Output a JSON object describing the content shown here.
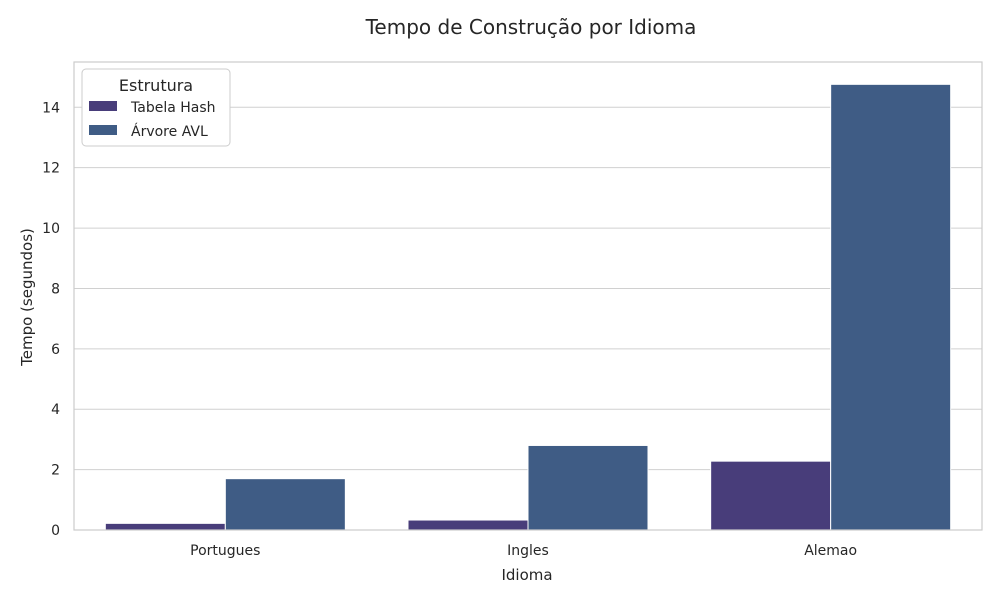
{
  "chart_data": {
    "type": "bar",
    "title": "Tempo de Construção por Idioma",
    "xlabel": "Idioma",
    "ylabel": "Tempo (segundos)",
    "categories": [
      "Portugues",
      "Ingles",
      "Alemao"
    ],
    "series": [
      {
        "name": "Tabela Hash",
        "values": [
          0.22,
          0.33,
          2.28
        ],
        "color": "#483d7a"
      },
      {
        "name": "Árvore AVL",
        "values": [
          1.7,
          2.8,
          14.76
        ],
        "color": "#3f5c85"
      }
    ],
    "ylim": [
      0,
      15.5
    ],
    "yticks": [
      0,
      2,
      4,
      6,
      8,
      10,
      12,
      14
    ],
    "grid": true,
    "legend": {
      "title": "Estrutura",
      "placement": "top-left"
    }
  }
}
